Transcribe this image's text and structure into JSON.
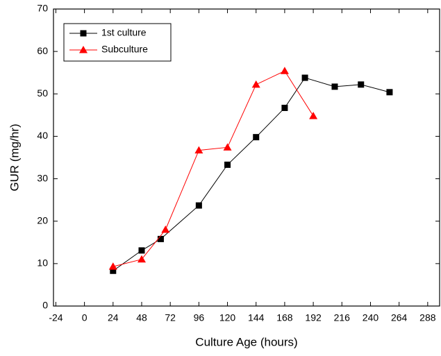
{
  "chart_data": {
    "type": "line",
    "x_label": "Culture Age (hours)",
    "y_label": "GUR (mg/hr)",
    "xlim": [
      -26,
      298
    ],
    "xticks": [
      -24,
      0,
      24,
      48,
      72,
      96,
      120,
      144,
      168,
      192,
      216,
      240,
      264,
      288
    ],
    "ylim": [
      0,
      70
    ],
    "yticks": [
      0,
      10,
      20,
      30,
      40,
      50,
      60,
      70
    ],
    "legend": "upper left",
    "series": [
      {
        "name": "1st culture",
        "color": "#000000",
        "marker": "square",
        "x": [
          24,
          48,
          64,
          96,
          120,
          144,
          168,
          185,
          210,
          232,
          256
        ],
        "values": [
          8.3,
          13.1,
          15.8,
          23.7,
          33.3,
          39.8,
          46.7,
          53.8,
          51.7,
          52.2,
          50.4
        ]
      },
      {
        "name": "Subculture",
        "color": "#ff0000",
        "marker": "triangle",
        "x": [
          24,
          48,
          68,
          96,
          120,
          144,
          168,
          192
        ],
        "values": [
          9.3,
          11.0,
          18.0,
          36.7,
          37.4,
          52.2,
          55.4,
          44.8
        ]
      }
    ]
  }
}
